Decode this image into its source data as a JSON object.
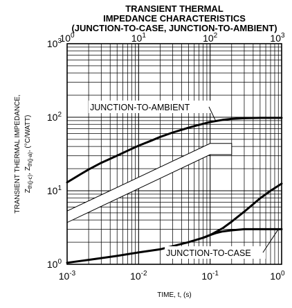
{
  "chart_data": {
    "type": "line",
    "title": [
      "TRANSIENT THERMAL",
      "IMPEDANCE CHARACTERISTICS",
      "(JUNCTION-TO-CASE, JUNCTION-TO-AMBIENT)"
    ],
    "xlabel": "TIME, t, (s)",
    "ylabel": {
      "line1": "TRANSIENT THERMAL IMPEDANCE,",
      "z": "Z",
      "sub1": "th(j-c)",
      "sep": ", Z",
      "sub2": "th(j-a)",
      "unit": ", (°C/WATT)"
    },
    "x_scale": "log",
    "y_scale": "log",
    "xlim": [
      0.001,
      1
    ],
    "ylim": [
      1,
      1000
    ],
    "top_xlim": [
      1,
      1000
    ],
    "x_ticks": [
      {
        "base": "10",
        "exp": "-3"
      },
      {
        "base": "10",
        "exp": "-2"
      },
      {
        "base": "10",
        "exp": "-1"
      },
      {
        "base": "10",
        "exp": "0"
      }
    ],
    "top_ticks": [
      {
        "base": "10",
        "exp": "0"
      },
      {
        "base": "10",
        "exp": "1"
      },
      {
        "base": "10",
        "exp": "2"
      },
      {
        "base": "10",
        "exp": "3"
      }
    ],
    "y_ticks": [
      {
        "base": "10",
        "exp": "0"
      },
      {
        "base": "10",
        "exp": "1"
      },
      {
        "base": "10",
        "exp": "2"
      },
      {
        "base": "10",
        "exp": "3"
      }
    ],
    "grid": true,
    "series": [
      {
        "name": "JUNCTION-TO-AMBIENT",
        "axis": "top",
        "x": [
          1,
          1.5,
          2,
          3,
          5,
          7,
          10,
          15,
          20,
          30,
          50,
          70,
          100,
          150,
          200,
          300,
          500,
          700,
          1000
        ],
        "y": [
          13,
          16.5,
          19.5,
          24,
          30,
          35,
          41,
          48,
          54,
          62,
          72,
          79,
          86,
          92,
          95,
          97,
          98,
          98,
          98
        ]
      },
      {
        "name": "JUNCTION-TO-CASE",
        "axis": "bottom",
        "x": [
          0.001,
          0.002,
          0.005,
          0.01,
          0.02,
          0.05,
          0.08,
          0.1,
          0.12,
          0.15,
          0.2,
          0.3,
          0.5,
          0.7,
          1
        ],
        "y": [
          1.05,
          1.15,
          1.3,
          1.45,
          1.6,
          2.0,
          2.3,
          2.5,
          2.65,
          2.8,
          2.9,
          3.0,
          3.0,
          3.0,
          3.0
        ]
      },
      {
        "name": "",
        "axis": "bottom",
        "x": [
          0.08,
          0.1,
          0.12,
          0.15,
          0.2,
          0.3,
          0.5,
          0.7,
          1
        ],
        "y": [
          2.3,
          2.5,
          2.75,
          3.1,
          3.8,
          5.2,
          7.9,
          10,
          12.5
        ]
      }
    ],
    "annotations": [
      {
        "text": "JUNCTION-TO-AMBIENT",
        "series": 0
      },
      {
        "text": "JUNCTION-TO-CASE",
        "series": 1
      }
    ]
  }
}
